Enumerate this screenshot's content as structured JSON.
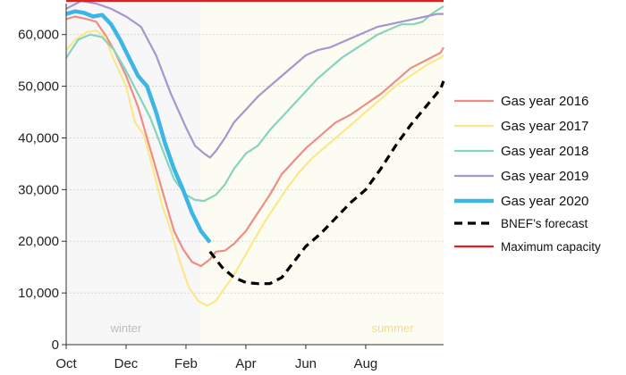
{
  "chart_data": {
    "type": "line",
    "title": "",
    "xlabel": "",
    "ylabel": "",
    "ylim": [
      0,
      66000
    ],
    "yticks": [
      0,
      10000,
      20000,
      30000,
      40000,
      50000,
      60000
    ],
    "ytick_labels": [
      "0",
      "10,000",
      "20,000",
      "30,000",
      "40,000",
      "50,000",
      "60,000"
    ],
    "xlim": [
      0,
      12.6
    ],
    "xticks": [
      0,
      2,
      4,
      6,
      8,
      10
    ],
    "xtick_labels": [
      "Oct",
      "Dec",
      "Feb",
      "Apr",
      "Jun",
      "Aug"
    ],
    "season_labels": {
      "winter": {
        "text": "winter",
        "x": 2,
        "color": "#bdbdbd"
      },
      "summer": {
        "text": "summer",
        "x": 10.9,
        "color": "#f5dc8c"
      }
    },
    "summer_shade_start": 4.5,
    "winter_shade_color": "#f7f7f7",
    "summer_shade_color": "#fcfcf2",
    "max_capacity": 66500,
    "series": [
      {
        "name": "Gas year 2016",
        "color": "#ef8c86",
        "width": 2.2,
        "dash": "",
        "x": [
          0,
          0.3,
          0.7,
          1,
          1.3,
          1.6,
          2,
          2.4,
          2.7,
          3,
          3.3,
          3.6,
          3.9,
          4.2,
          4.5,
          4.8,
          5,
          5.3,
          5.6,
          6,
          6.4,
          6.8,
          7.2,
          7.6,
          8,
          8.5,
          9,
          9.5,
          10,
          10.5,
          11,
          11.5,
          12,
          12.5,
          12.6
        ],
        "y": [
          63000,
          63500,
          63000,
          62500,
          60000,
          57000,
          52000,
          46000,
          40000,
          34000,
          28000,
          22000,
          18500,
          16000,
          15200,
          16500,
          18000,
          18200,
          19500,
          22000,
          25500,
          29000,
          33000,
          35500,
          38000,
          40500,
          43000,
          44500,
          46500,
          48500,
          51000,
          53500,
          55000,
          56500,
          57500
        ]
      },
      {
        "name": "Gas year 2017",
        "color": "#fbe88a",
        "width": 2.2,
        "dash": "",
        "x": [
          0,
          0.3,
          0.7,
          1,
          1.3,
          1.6,
          2,
          2.3,
          2.6,
          2.9,
          3.2,
          3.5,
          3.8,
          4.1,
          4.4,
          4.7,
          5,
          5.3,
          5.6,
          6,
          6.3,
          6.6,
          7,
          7.4,
          7.8,
          8.2,
          8.6,
          9,
          9.5,
          10,
          10.5,
          11,
          11.5,
          12,
          12.5,
          12.6
        ],
        "y": [
          57000,
          59000,
          60500,
          60800,
          59500,
          55000,
          50000,
          43000,
          40500,
          34000,
          27000,
          22000,
          16000,
          11000,
          8500,
          7500,
          8500,
          11000,
          13500,
          17500,
          20500,
          23500,
          27000,
          30500,
          33500,
          36000,
          38000,
          40000,
          42500,
          45000,
          47500,
          50000,
          52000,
          54000,
          55500,
          56000
        ]
      },
      {
        "name": "Gas year 2018",
        "color": "#86d4c0",
        "width": 2.2,
        "dash": "",
        "x": [
          0,
          0.4,
          0.8,
          1.2,
          1.6,
          2,
          2.4,
          2.8,
          3.2,
          3.6,
          4,
          4.3,
          4.6,
          5,
          5.3,
          5.6,
          6,
          6.4,
          6.8,
          7.2,
          7.6,
          8,
          8.4,
          8.8,
          9.2,
          9.6,
          10,
          10.4,
          10.8,
          11.2,
          11.6,
          11.9,
          12.2,
          12.6
        ],
        "y": [
          55500,
          59000,
          60000,
          59500,
          57000,
          53000,
          48500,
          44000,
          38000,
          32000,
          29000,
          28000,
          27800,
          29000,
          31000,
          34000,
          37000,
          38500,
          41500,
          44000,
          46500,
          49000,
          51500,
          53500,
          55500,
          57000,
          58500,
          60000,
          61000,
          62000,
          62000,
          62500,
          64000,
          65500
        ]
      },
      {
        "name": "Gas year 2019",
        "color": "#a596cf",
        "width": 2.2,
        "dash": "",
        "x": [
          0,
          0.5,
          1,
          1.5,
          2,
          2.5,
          3,
          3.5,
          4,
          4.3,
          4.6,
          4.8,
          5,
          5.3,
          5.6,
          6,
          6.4,
          6.8,
          7.2,
          7.6,
          8,
          8.4,
          8.8,
          9.2,
          9.6,
          10,
          10.4,
          10.8,
          11.2,
          11.6,
          12,
          12.4,
          12.6
        ],
        "y": [
          65000,
          66500,
          66000,
          65000,
          63500,
          61500,
          56000,
          48500,
          42000,
          38500,
          37000,
          36200,
          37500,
          40000,
          43000,
          45500,
          48000,
          50000,
          52000,
          54000,
          56000,
          57000,
          57500,
          58500,
          59500,
          60500,
          61500,
          62000,
          62500,
          63000,
          63500,
          64000,
          64000
        ]
      },
      {
        "name": "Gas year 2020",
        "color": "#3db6e5",
        "width": 4.5,
        "dash": "",
        "x": [
          0,
          0.3,
          0.6,
          0.9,
          1.2,
          1.5,
          1.8,
          2.1,
          2.4,
          2.7,
          3,
          3.3,
          3.6,
          3.9,
          4.2,
          4.5,
          4.8
        ],
        "y": [
          64000,
          64500,
          64200,
          63500,
          63800,
          62000,
          59000,
          55500,
          52000,
          50000,
          45000,
          39000,
          34000,
          30000,
          25500,
          22000,
          19800
        ]
      },
      {
        "name": "BNEF’s forecast",
        "color": "#000000",
        "width": 3.2,
        "dash": "9,6",
        "x": [
          4.8,
          5.2,
          5.6,
          6,
          6.4,
          6.8,
          7.2,
          7.6,
          8,
          8.5,
          9,
          9.5,
          10,
          10.5,
          11,
          11.5,
          12,
          12.5,
          12.6
        ],
        "y": [
          18000,
          15000,
          13000,
          12000,
          11800,
          11800,
          13000,
          16000,
          19000,
          21500,
          24500,
          27500,
          30000,
          34000,
          38500,
          42500,
          46000,
          49500,
          51000
        ]
      },
      {
        "name": "Maximum capacity",
        "color": "#e02020",
        "width": 2.2,
        "dash": "",
        "x": [
          0,
          12.6
        ],
        "y": [
          66500,
          66500
        ]
      }
    ]
  }
}
